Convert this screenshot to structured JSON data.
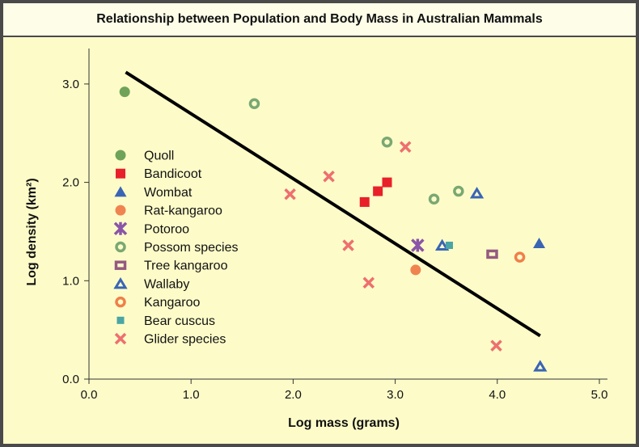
{
  "chart_data": {
    "type": "scatter",
    "title": "Relationship between Population and Body Mass in Australian Mammals",
    "xlabel": "Log mass (grams)",
    "ylabel": "Log density (km²)",
    "xlim": [
      0,
      5
    ],
    "ylim": [
      0,
      3.2
    ],
    "xticks": [
      "0.0",
      "1.0",
      "2.0",
      "3.0",
      "4.0",
      "5.0"
    ],
    "yticks": [
      "0.0",
      "1.0",
      "2.0",
      "3.0"
    ],
    "grid": false,
    "legend_position": "left",
    "series": [
      {
        "name": "Quoll",
        "marker": "filled-circle",
        "color": "#6fa35a",
        "points": [
          [
            0.35,
            2.92
          ]
        ]
      },
      {
        "name": "Bandicoot",
        "marker": "filled-square",
        "color": "#e8202a",
        "points": [
          [
            2.7,
            1.8
          ],
          [
            2.83,
            1.91
          ],
          [
            2.92,
            2.0
          ]
        ]
      },
      {
        "name": "Wombat",
        "marker": "filled-triangle",
        "color": "#3a65b5",
        "points": [
          [
            4.41,
            1.38
          ]
        ]
      },
      {
        "name": "Rat-kangaroo",
        "marker": "filled-circle",
        "color": "#f08450",
        "points": [
          [
            3.2,
            1.11
          ]
        ]
      },
      {
        "name": "Potoroo",
        "marker": "asterisk",
        "color": "#8a55a8",
        "points": [
          [
            3.22,
            1.36
          ]
        ]
      },
      {
        "name": "Possom species",
        "marker": "open-circle",
        "color": "#7aa872",
        "points": [
          [
            1.62,
            2.8
          ],
          [
            2.92,
            2.41
          ],
          [
            3.38,
            1.83
          ],
          [
            3.62,
            1.91
          ]
        ]
      },
      {
        "name": "Tree kangaroo",
        "marker": "open-square",
        "color": "#955a80",
        "points": [
          [
            3.95,
            1.27
          ]
        ]
      },
      {
        "name": "Wallaby",
        "marker": "open-triangle",
        "color": "#3a65b5",
        "points": [
          [
            3.8,
            1.89
          ],
          [
            3.46,
            1.36
          ],
          [
            4.42,
            0.13
          ]
        ]
      },
      {
        "name": "Kangaroo",
        "marker": "open-circle",
        "color": "#f07f4a",
        "points": [
          [
            4.22,
            1.24
          ]
        ]
      },
      {
        "name": "Bear cuscus",
        "marker": "small-square",
        "color": "#4aa5a5",
        "points": [
          [
            3.53,
            1.36
          ]
        ]
      },
      {
        "name": "Glider species",
        "marker": "x",
        "color": "#ee6f6f",
        "points": [
          [
            3.1,
            2.36
          ],
          [
            2.35,
            2.06
          ],
          [
            1.97,
            1.88
          ],
          [
            2.54,
            1.36
          ],
          [
            2.74,
            0.98
          ],
          [
            3.99,
            0.34
          ]
        ]
      }
    ],
    "trendline": {
      "color": "#000000",
      "points": [
        [
          0.36,
          3.12
        ],
        [
          4.42,
          0.44
        ]
      ]
    }
  }
}
